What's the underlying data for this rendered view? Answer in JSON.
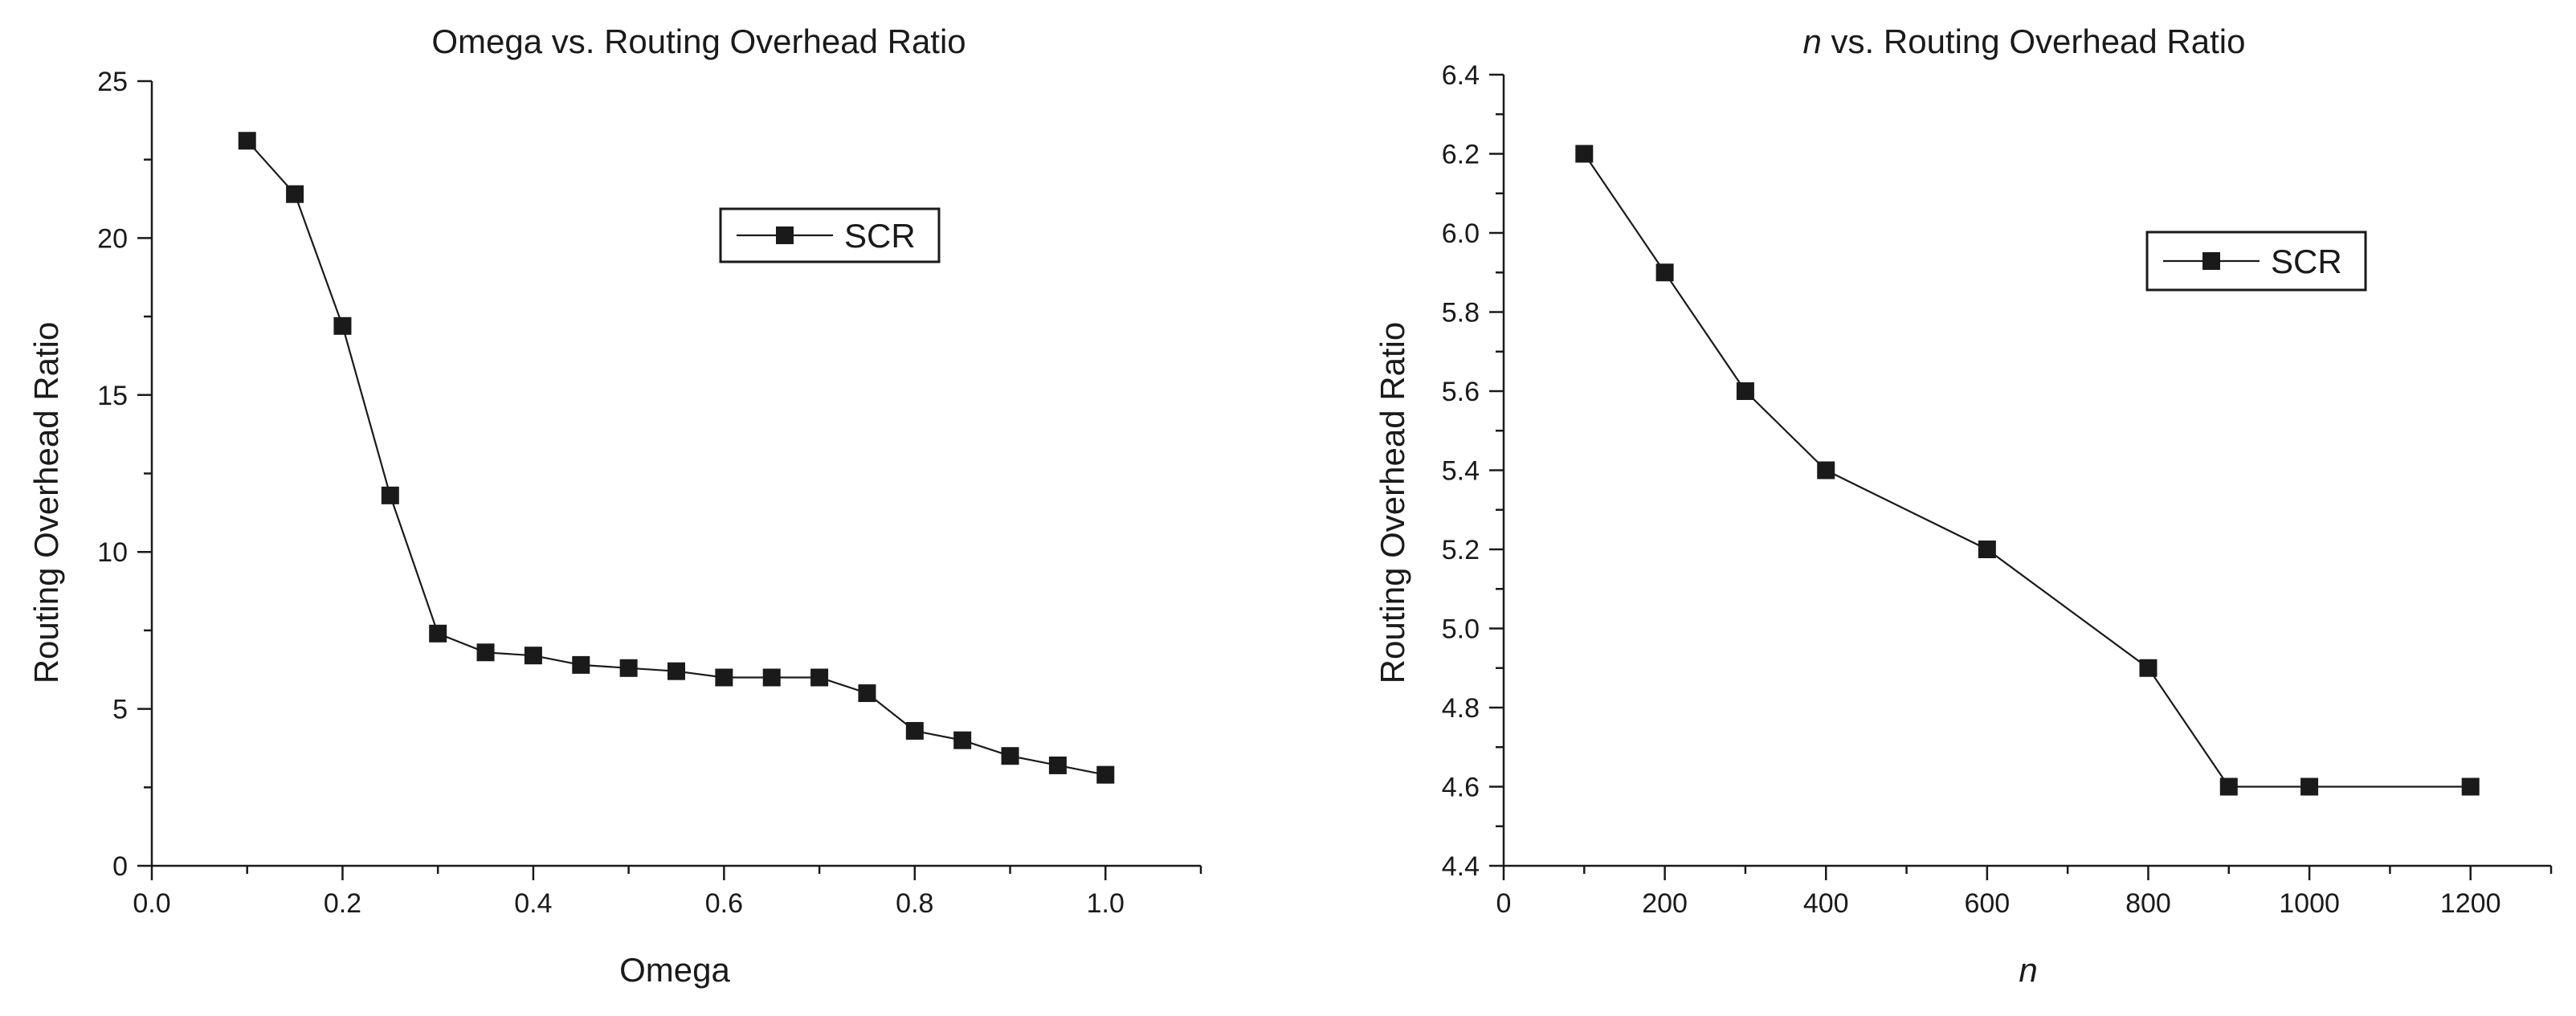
{
  "chart_data": [
    {
      "type": "line",
      "title": "Omega vs. Routing Overhead Ratio",
      "xlabel": "Omega",
      "ylabel": "Routing Overhead Ratio",
      "xlim": [
        0,
        1.1
      ],
      "ylim": [
        0,
        25
      ],
      "xticks": [
        0.0,
        0.2,
        0.4,
        0.6,
        0.8,
        1.0
      ],
      "xtick_labels": [
        "0.0",
        "0.2",
        "0.4",
        "0.6",
        "0.8",
        "1.0"
      ],
      "yticks": [
        0,
        5,
        10,
        15,
        20,
        25
      ],
      "ytick_labels": [
        "0",
        "5",
        "10",
        "15",
        "20",
        "25"
      ],
      "legend_position": "top-right",
      "series": [
        {
          "name": "SCR",
          "x": [
            0.1,
            0.15,
            0.2,
            0.25,
            0.3,
            0.35,
            0.4,
            0.45,
            0.5,
            0.55,
            0.6,
            0.65,
            0.7,
            0.75,
            0.8,
            0.85,
            0.9,
            0.95,
            1.0
          ],
          "values": [
            23.1,
            21.4,
            17.2,
            11.8,
            7.4,
            6.8,
            6.7,
            6.4,
            6.3,
            6.2,
            6.0,
            6.0,
            6.0,
            5.5,
            4.3,
            4.0,
            3.5,
            3.2,
            2.9
          ]
        }
      ]
    },
    {
      "type": "line",
      "title_var": "n",
      "title_rest": " vs. Routing Overhead Ratio",
      "xlabel": "n",
      "ylabel": "Routing Overhead Ratio",
      "xlim": [
        0,
        1300
      ],
      "ylim": [
        4.4,
        6.4
      ],
      "xticks": [
        0,
        200,
        400,
        600,
        800,
        1000,
        1200
      ],
      "xtick_labels": [
        "0",
        "200",
        "400",
        "600",
        "800",
        "1000",
        "1200"
      ],
      "yticks": [
        4.4,
        4.6,
        4.8,
        5.0,
        5.2,
        5.4,
        5.6,
        5.8,
        6.0,
        6.2,
        6.4
      ],
      "ytick_labels": [
        "4.4",
        "4.6",
        "4.8",
        "5.0",
        "5.2",
        "5.4",
        "5.6",
        "5.8",
        "6.0",
        "6.2",
        "6.4"
      ],
      "legend_position": "top-right",
      "series": [
        {
          "name": "SCR",
          "x": [
            100,
            200,
            300,
            400,
            600,
            800,
            900,
            1000,
            1200
          ],
          "values": [
            6.2,
            5.9,
            5.6,
            5.4,
            5.2,
            4.9,
            4.6,
            4.6,
            4.6
          ]
        }
      ]
    }
  ]
}
